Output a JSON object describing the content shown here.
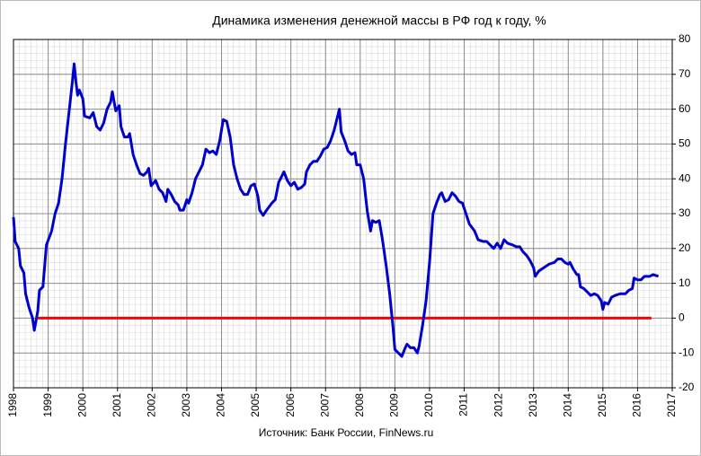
{
  "chart_data": {
    "type": "line",
    "title": "Динамика  изменения  денежной  массы в РФ год к году, %",
    "source": "Источник:  Банк России, FinNews.ru",
    "xlim": [
      1998,
      2017
    ],
    "xticks": [
      1998,
      1999,
      2000,
      2001,
      2002,
      2003,
      2004,
      2005,
      2006,
      2007,
      2008,
      2009,
      2010,
      2011,
      2012,
      2013,
      2014,
      2015,
      2016,
      2017
    ],
    "ylim": [
      -20,
      80
    ],
    "yticks": [
      -20,
      -10,
      0,
      10,
      20,
      30,
      40,
      50,
      60,
      70,
      80
    ],
    "grid": true,
    "x": [
      1998.0,
      1998.05,
      1998.15,
      1998.2,
      1998.3,
      1998.35,
      1998.45,
      1998.55,
      1998.6,
      1998.7,
      1998.75,
      1998.85,
      1998.95,
      1999.1,
      1999.2,
      1999.3,
      1999.4,
      1999.5,
      1999.6,
      1999.7,
      1999.75,
      1999.8,
      1999.85,
      1999.9,
      2000.0,
      2000.05,
      2000.2,
      2000.3,
      2000.4,
      2000.5,
      2000.6,
      2000.7,
      2000.8,
      2000.85,
      2000.95,
      2001.05,
      2001.1,
      2001.2,
      2001.3,
      2001.35,
      2001.45,
      2001.55,
      2001.65,
      2001.75,
      2001.85,
      2001.9,
      2001.97,
      2002.1,
      2002.2,
      2002.3,
      2002.4,
      2002.45,
      2002.55,
      2002.65,
      2002.75,
      2002.8,
      2002.9,
      2003.0,
      2003.05,
      2003.15,
      2003.25,
      2003.35,
      2003.45,
      2003.55,
      2003.65,
      2003.75,
      2003.85,
      2003.95,
      2004.05,
      2004.15,
      2004.25,
      2004.35,
      2004.45,
      2004.55,
      2004.65,
      2004.75,
      2004.85,
      2004.95,
      2005.05,
      2005.1,
      2005.2,
      2005.3,
      2005.45,
      2005.55,
      2005.65,
      2005.75,
      2005.8,
      2005.9,
      2006.0,
      2006.1,
      2006.2,
      2006.3,
      2006.4,
      2006.45,
      2006.55,
      2006.65,
      2006.75,
      2006.85,
      2006.95,
      2007.05,
      2007.15,
      2007.25,
      2007.35,
      2007.4,
      2007.45,
      2007.55,
      2007.65,
      2007.75,
      2007.85,
      2007.9,
      2008.0,
      2008.1,
      2008.2,
      2008.3,
      2008.35,
      2008.45,
      2008.55,
      2008.65,
      2008.75,
      2008.85,
      2008.95,
      2009.0,
      2009.1,
      2009.2,
      2009.3,
      2009.35,
      2009.45,
      2009.55,
      2009.65,
      2009.7,
      2009.8,
      2009.9,
      2010.0,
      2010.1,
      2010.2,
      2010.3,
      2010.35,
      2010.45,
      2010.55,
      2010.65,
      2010.75,
      2010.85,
      2010.95,
      2011.05,
      2011.15,
      2011.3,
      2011.4,
      2011.55,
      2011.65,
      2011.75,
      2011.85,
      2011.95,
      2012.05,
      2012.15,
      2012.25,
      2012.4,
      2012.5,
      2012.6,
      2012.7,
      2012.8,
      2012.9,
      2013.0,
      2013.05,
      2013.15,
      2013.3,
      2013.45,
      2013.6,
      2013.7,
      2013.8,
      2013.9,
      2014.0,
      2014.05,
      2014.15,
      2014.25,
      2014.3,
      2014.35,
      2014.45,
      2014.55,
      2014.65,
      2014.75,
      2014.85,
      2014.95,
      2015.0,
      2015.05,
      2015.15,
      2015.25,
      2015.35,
      2015.5,
      2015.65,
      2015.75,
      2015.85,
      2015.9,
      2016.0,
      2016.1,
      2016.2,
      2016.35,
      2016.45,
      2016.6
    ],
    "series": [
      {
        "color": "#0000cc",
        "values": [
          29,
          22,
          20,
          15,
          13,
          7,
          3,
          0,
          -3.5,
          2,
          8,
          9,
          21,
          25,
          30,
          33,
          40,
          50,
          59,
          68,
          73,
          68,
          64,
          65.5,
          63,
          58,
          57.5,
          59,
          55,
          54,
          56,
          60,
          62,
          65,
          59.5,
          61,
          55,
          52,
          52,
          53,
          47,
          44,
          41.5,
          41,
          42,
          43,
          38,
          39.5,
          37,
          36,
          33.5,
          37,
          35.5,
          33.5,
          32.5,
          31,
          31,
          34,
          33,
          36,
          40,
          42,
          44,
          48.5,
          47.5,
          48,
          47,
          51,
          57,
          56.5,
          52,
          44,
          40,
          37,
          35.5,
          35.5,
          38,
          38.5,
          35,
          31,
          29.5,
          31,
          33,
          34,
          39,
          41,
          42,
          39.5,
          38,
          39,
          37,
          37.5,
          38.5,
          42,
          44,
          45,
          45,
          46.5,
          48.5,
          49,
          51,
          54,
          58,
          60,
          53.5,
          51,
          48,
          47,
          47.5,
          44,
          44,
          40,
          31,
          25,
          28,
          27.5,
          28,
          22,
          15,
          7,
          -3,
          -9,
          -10,
          -11,
          -8.5,
          -7.5,
          -8.5,
          -8.5,
          -10,
          -8,
          -2,
          5,
          16,
          30,
          33,
          35.5,
          36,
          33.5,
          34,
          36,
          35,
          33.5,
          33,
          30,
          27,
          25,
          22.5,
          22,
          22,
          21,
          20,
          21.5,
          20,
          22.5,
          21.5,
          21,
          20.5,
          20.5,
          19,
          18,
          16.5,
          14.5,
          12,
          13.5,
          14.5,
          15.5,
          16,
          17,
          17,
          16,
          15.5,
          16,
          14,
          12.5,
          12.5,
          9,
          8.5,
          7.5,
          6.5,
          7,
          6.5,
          5,
          2.5,
          4.5,
          4,
          6,
          6.5,
          7,
          7,
          8,
          8.5,
          11.5,
          11,
          11,
          12,
          12,
          12.5,
          12
        ]
      }
    ],
    "reference_line": {
      "value": 0,
      "x": [
        1998.7,
        2016.4
      ],
      "color": "#ff0000"
    }
  }
}
